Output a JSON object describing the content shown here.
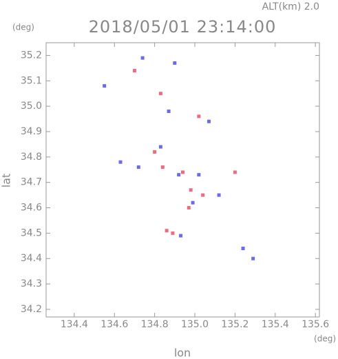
{
  "chart_data": {
    "type": "scatter",
    "title": "2018/05/01 23:14:00",
    "altitude_label": "ALT(km) 2.0",
    "y_unit": "(deg)",
    "x_unit": "(deg)",
    "xlabel": "lon",
    "ylabel": "lat",
    "xlim": [
      134.26,
      135.62
    ],
    "ylim": [
      34.17,
      35.25
    ],
    "xticks": [
      134.4,
      134.6,
      134.8,
      {
        "value": 135.0,
        "label": "135.0"
      },
      135.2,
      135.4,
      135.6
    ],
    "yticks": [
      34.2,
      34.3,
      34.4,
      34.5,
      34.6,
      34.7,
      34.8,
      34.9,
      {
        "value": 35.0,
        "label": "35.0"
      },
      35.1,
      35.2
    ],
    "series": [
      {
        "color": "#f06a80",
        "x": [
          134.7,
          134.83,
          135.02,
          134.8,
          134.84,
          134.94,
          135.2,
          134.98,
          135.04,
          134.89,
          134.86,
          134.97
        ],
        "values": [
          35.14,
          35.05,
          34.96,
          34.82,
          34.76,
          34.74,
          34.74,
          34.67,
          34.65,
          34.5,
          34.51,
          34.6
        ]
      },
      {
        "color": "#6a6af0",
        "x": [
          134.74,
          134.9,
          134.55,
          134.87,
          135.07,
          134.63,
          134.72,
          134.92,
          135.02,
          135.12,
          134.99,
          134.93,
          135.24,
          135.29,
          134.83
        ],
        "values": [
          35.19,
          35.17,
          35.08,
          34.98,
          34.94,
          34.78,
          34.76,
          34.73,
          34.73,
          34.65,
          34.62,
          34.49,
          34.44,
          34.4,
          34.84
        ]
      }
    ]
  }
}
